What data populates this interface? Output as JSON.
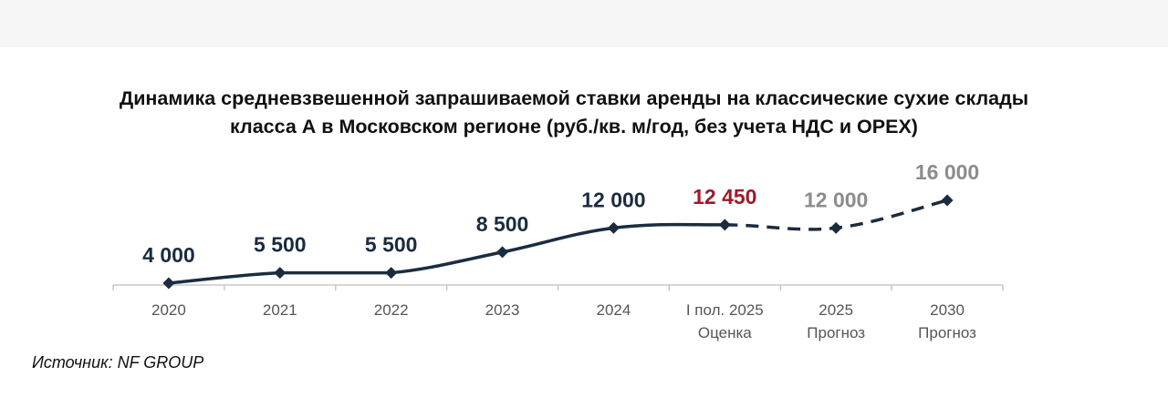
{
  "chart_data": {
    "type": "line",
    "title_lines": [
      "Динамика средневзвешенной запрашиваемой ставки аренды на классические сухие склады",
      "класса А в Московском регионе (руб./кв. м/год, без учета НДС и OPEX)"
    ],
    "categories": [
      [
        "2020"
      ],
      [
        "2021"
      ],
      [
        "2022"
      ],
      [
        "2023"
      ],
      [
        "2024"
      ],
      [
        "I пол. 2025",
        "Оценка"
      ],
      [
        "2025",
        "Прогноз"
      ],
      [
        "2030",
        "Прогноз"
      ]
    ],
    "values": [
      4000,
      5500,
      5500,
      8500,
      12000,
      12450,
      12000,
      16000
    ],
    "value_labels": [
      "4 000",
      "5 500",
      "5 500",
      "8 500",
      "12 000",
      "12 450",
      "12 000",
      "16 000"
    ],
    "label_styles": [
      "actual",
      "actual",
      "actual",
      "actual",
      "actual",
      "estimate",
      "forecast",
      "forecast"
    ],
    "segment_styles": [
      "solid",
      "solid",
      "solid",
      "solid",
      "solid",
      "dashed",
      "dashed"
    ],
    "colors": {
      "line": "#1b2c3f",
      "actual": "#1b2c3f",
      "estimate": "#9e1a2a",
      "forecast": "#8c8c8c",
      "axis": "#c8c8c8",
      "tick_text": "#555555"
    },
    "grid": false
  },
  "source": "Источник: NF GROUP"
}
